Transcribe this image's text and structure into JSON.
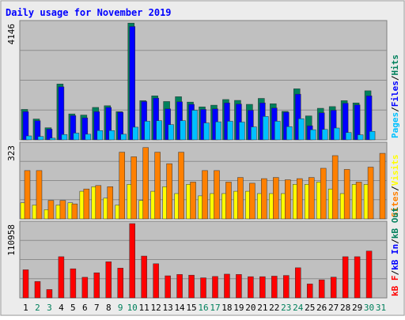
{
  "title": "Daily usage for November 2019",
  "colors": {
    "background": "#ececec",
    "plot_background": "#c0c0c0",
    "gridline": "#8c8c8c",
    "title_text": "#0000ff",
    "hits": "#00805c",
    "files": "#0000ff",
    "pages": "#00c0ff",
    "visits": "#ffff00",
    "sites": "#ff8000",
    "kb_in": "#0000ff",
    "kb_out": "#00805c",
    "kb_f": "#ff0000",
    "weekend_day": "#00805c",
    "weekday_day": "#000000"
  },
  "chart_data": [
    {
      "type": "bar",
      "panel": "hits-files-pages",
      "ymax_label": "4146",
      "ylim": [
        0,
        4146
      ],
      "legend": [
        "Pages",
        "Files",
        "Hits"
      ],
      "categories": [
        "1",
        "2",
        "3",
        "4",
        "5",
        "6",
        "7",
        "8",
        "9",
        "10",
        "11",
        "12",
        "13",
        "14",
        "15",
        "16",
        "17",
        "18",
        "19",
        "20",
        "21",
        "22",
        "23",
        "24",
        "25",
        "26",
        "27",
        "28",
        "29",
        "30",
        "31"
      ],
      "series": [
        {
          "name": "Hits",
          "values": [
            1080,
            740,
            430,
            1980,
            920,
            880,
            1150,
            1210,
            1000,
            4140,
            1390,
            1560,
            1360,
            1530,
            1340,
            1170,
            1230,
            1430,
            1400,
            1260,
            1470,
            1280,
            1010,
            1810,
            850,
            1120,
            1180,
            1390,
            1310,
            1740,
            0
          ]
        },
        {
          "name": "Files",
          "values": [
            1000,
            680,
            380,
            1880,
            860,
            780,
            1000,
            1150,
            980,
            4020,
            1360,
            1480,
            1100,
            1350,
            1260,
            1080,
            1100,
            1310,
            1270,
            1050,
            1310,
            1130,
            980,
            1620,
            500,
            960,
            1050,
            1300,
            1240,
            1560,
            0
          ]
        },
        {
          "name": "Pages",
          "values": [
            140,
            120,
            60,
            190,
            240,
            200,
            330,
            330,
            200,
            450,
            660,
            680,
            540,
            680,
            1050,
            600,
            640,
            660,
            630,
            460,
            830,
            660,
            470,
            750,
            360,
            370,
            420,
            260,
            180,
            300,
            0
          ]
        }
      ]
    },
    {
      "type": "bar",
      "panel": "visits-sites",
      "ymax_label": "323",
      "ylim": [
        0,
        323
      ],
      "legend": [
        "Visits",
        "Sites"
      ],
      "categories": [
        "1",
        "2",
        "3",
        "4",
        "5",
        "6",
        "7",
        "8",
        "9",
        "10",
        "11",
        "12",
        "13",
        "14",
        "15",
        "16",
        "17",
        "18",
        "19",
        "20",
        "21",
        "22",
        "23",
        "24",
        "25",
        "26",
        "27",
        "28",
        "29",
        "30",
        "31"
      ],
      "series": [
        {
          "name": "Visits",
          "values": [
            70,
            60,
            40,
            60,
            70,
            120,
            140,
            90,
            60,
            150,
            80,
            120,
            140,
            110,
            150,
            100,
            110,
            110,
            120,
            120,
            110,
            110,
            110,
            150,
            150,
            160,
            130,
            110,
            150,
            150,
            0
          ]
        },
        {
          "name": "Sites",
          "values": [
            210,
            210,
            80,
            80,
            65,
            130,
            145,
            140,
            290,
            270,
            310,
            290,
            240,
            290,
            160,
            210,
            210,
            160,
            180,
            155,
            175,
            180,
            170,
            175,
            180,
            220,
            275,
            215,
            160,
            225,
            285
          ]
        }
      ]
    },
    {
      "type": "bar",
      "panel": "kbytes",
      "ymax_label": "110958",
      "ylim": [
        0,
        110958
      ],
      "legend": [
        "kB F",
        "kB In",
        "kB Out"
      ],
      "categories": [
        "1",
        "2",
        "3",
        "4",
        "5",
        "6",
        "7",
        "8",
        "9",
        "10",
        "11",
        "12",
        "13",
        "14",
        "15",
        "16",
        "17",
        "18",
        "19",
        "20",
        "21",
        "22",
        "23",
        "24",
        "25",
        "26",
        "27",
        "28",
        "29",
        "30",
        "31"
      ],
      "series": [
        {
          "name": "kB F",
          "values": [
            42000,
            24500,
            12500,
            61500,
            43500,
            30800,
            37500,
            54000,
            44500,
            110958,
            62500,
            51000,
            33000,
            35000,
            34000,
            30000,
            32000,
            35500,
            35000,
            31700,
            31700,
            32500,
            33500,
            45000,
            20800,
            27000,
            31000,
            61500,
            61500,
            70000,
            0
          ]
        }
      ]
    }
  ]
}
